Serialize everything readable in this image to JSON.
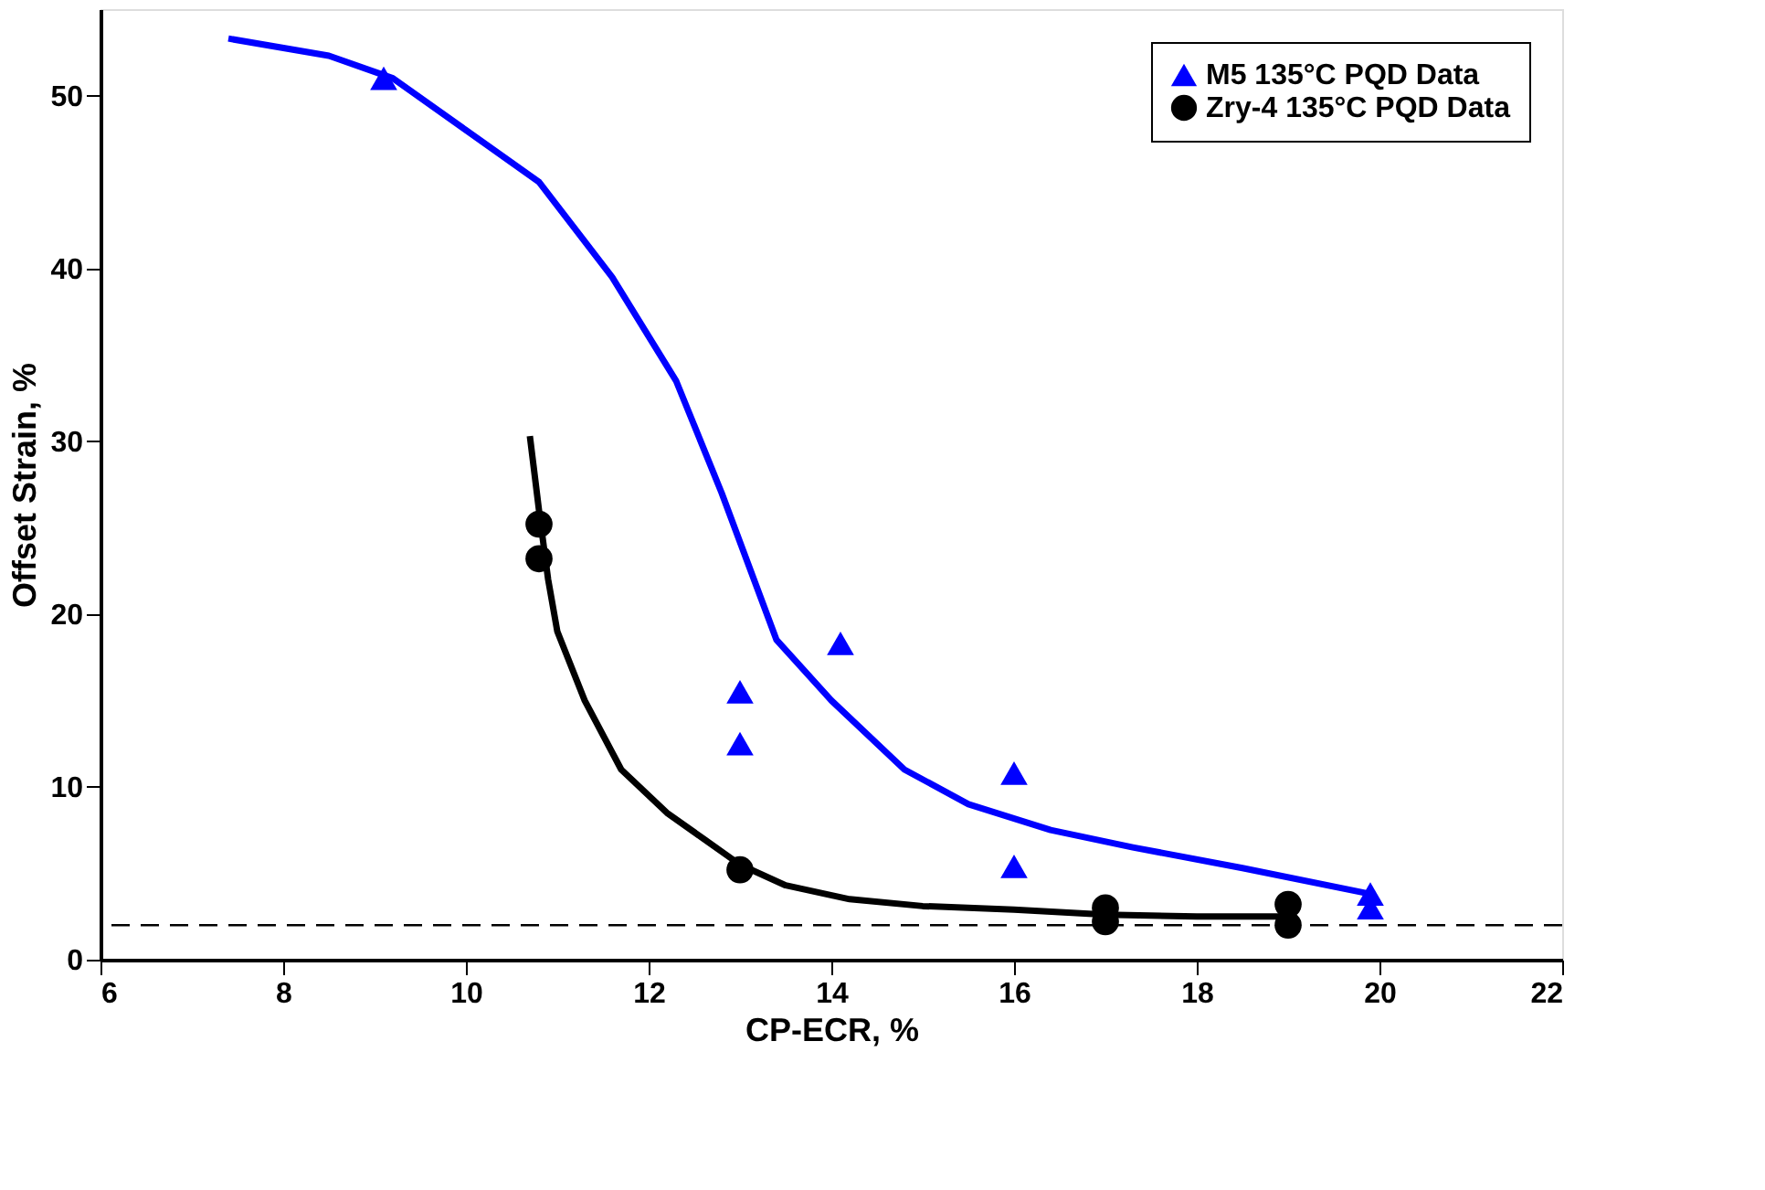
{
  "chart_data": {
    "type": "scatter",
    "xlabel": "CP-ECR, %",
    "ylabel": "Offset Strain, %",
    "xlim": [
      6,
      22
    ],
    "xticks": [
      6,
      8,
      10,
      12,
      14,
      16,
      18,
      20,
      22
    ],
    "ylim": [
      0,
      55
    ],
    "yticks": [
      0,
      10,
      20,
      30,
      40,
      50
    ],
    "grid": false,
    "legend": "top right",
    "ref_lines": [
      {
        "axis": "y",
        "value": 2,
        "color": "#000000",
        "line_style": "dashed"
      }
    ],
    "series": [
      {
        "name": "M5 135°C PQD Data",
        "marker": "triangle",
        "color": "#0000ff",
        "x": [
          9.1,
          13,
          13,
          14.1,
          16,
          16,
          19.9,
          19.9
        ],
        "values": [
          51,
          15.5,
          12.5,
          18.3,
          10.8,
          5.4,
          3.8,
          3.0
        ]
      },
      {
        "name": "Zry-4 135°C PQD Data",
        "marker": "circle",
        "color": "#000000",
        "x": [
          10.8,
          10.8,
          13,
          17,
          17,
          19,
          19
        ],
        "values": [
          25.2,
          23.2,
          5.2,
          3.0,
          2.2,
          3.2,
          2.0
        ]
      },
      {
        "type": "line",
        "marker": "none",
        "color": "#0000ff",
        "x": [
          7.4,
          8.5,
          9.2,
          10,
          10.8,
          11.6,
          12.3,
          12.8,
          13.4,
          14,
          14.8,
          15.5,
          16.4,
          17.3,
          18.5,
          19.9
        ],
        "values": [
          53.3,
          52.3,
          51,
          48,
          45,
          39.5,
          33.5,
          27,
          18.5,
          15,
          11,
          9,
          7.5,
          6.5,
          5.3,
          3.8
        ]
      },
      {
        "type": "line",
        "marker": "none",
        "color": "#000000",
        "x": [
          10.7,
          10.8,
          10.9,
          11,
          11.3,
          11.7,
          12.2,
          12.6,
          13,
          13.5,
          14.2,
          15,
          16,
          17,
          18,
          19
        ],
        "values": [
          30.3,
          26,
          22,
          19,
          15,
          11,
          8.5,
          7,
          5.5,
          4.3,
          3.5,
          3.1,
          2.9,
          2.6,
          2.5,
          2.5
        ]
      }
    ]
  }
}
